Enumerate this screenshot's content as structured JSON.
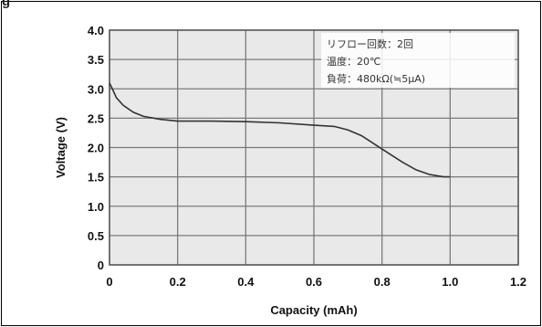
{
  "header": {
    "title_fragment": "g"
  },
  "chart_data": {
    "type": "line",
    "xlabel": "Capacity (mAh)",
    "ylabel": "Voltage (V)",
    "xlim": [
      0,
      1.2
    ],
    "ylim": [
      0,
      4.0
    ],
    "x_ticks": [
      "0",
      "0.2",
      "0.4",
      "0.6",
      "0.8",
      "1.0",
      "1.2"
    ],
    "y_ticks": [
      "0",
      "0.5",
      "1.0",
      "1.5",
      "2.0",
      "2.5",
      "3.0",
      "3.5",
      "4.0"
    ],
    "grid": true,
    "colors": {
      "line": "#333333",
      "grid": "#7a7a7a",
      "plot_background": "#e9e9e9"
    },
    "annotations": [
      "リフロー回数：2回",
      "温度：20℃",
      "負荷：480kΩ(≒5μA)"
    ],
    "series": [
      {
        "x": [
          0.0,
          0.01,
          0.02,
          0.04,
          0.07,
          0.1,
          0.15,
          0.2,
          0.3,
          0.4,
          0.5,
          0.6,
          0.66,
          0.7,
          0.74,
          0.78,
          0.82,
          0.86,
          0.9,
          0.94,
          0.98,
          1.0
        ],
        "y": [
          3.1,
          2.98,
          2.85,
          2.72,
          2.6,
          2.53,
          2.48,
          2.45,
          2.45,
          2.44,
          2.42,
          2.38,
          2.36,
          2.3,
          2.2,
          2.05,
          1.9,
          1.75,
          1.62,
          1.54,
          1.5,
          1.5
        ]
      }
    ]
  }
}
